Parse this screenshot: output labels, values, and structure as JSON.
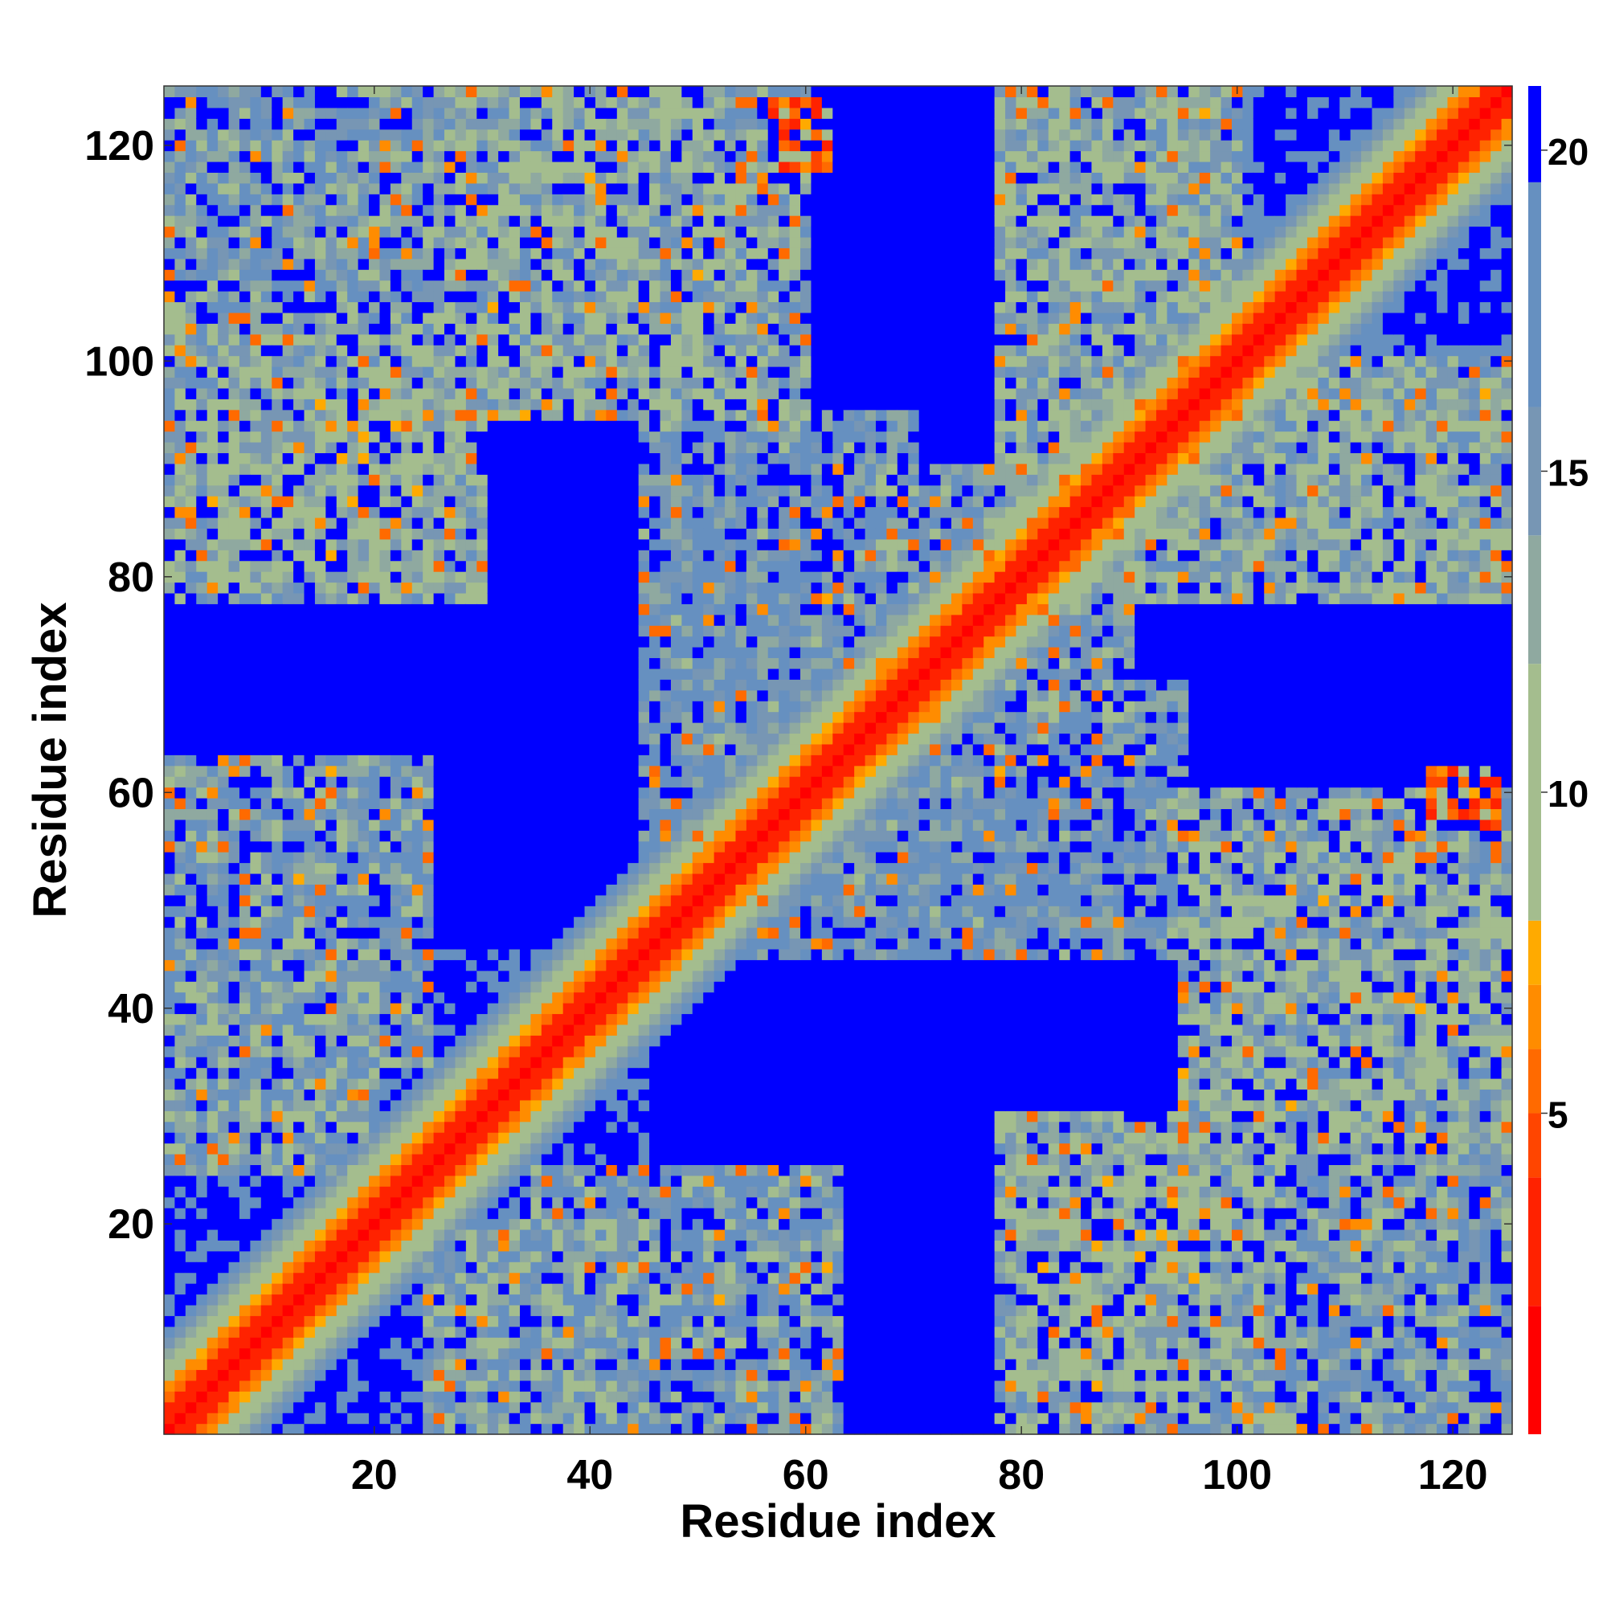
{
  "chart_data": {
    "type": "heatmap",
    "title": "",
    "xlabel": "Residue index",
    "ylabel": "Residue index",
    "n_residues": 125,
    "xlim": [
      0.5,
      125.5
    ],
    "ylim": [
      0.5,
      125.5
    ],
    "x_ticks": [
      20,
      40,
      60,
      80,
      100,
      120
    ],
    "y_ticks": [
      20,
      40,
      60,
      80,
      100,
      120
    ],
    "colorbar": {
      "range": [
        0,
        21
      ],
      "ticks": [
        5,
        10,
        15,
        20
      ],
      "levels": [
        {
          "max": 2,
          "color": "#ff0000"
        },
        {
          "max": 4,
          "color": "#ff2200"
        },
        {
          "max": 5,
          "color": "#ff4500"
        },
        {
          "max": 6,
          "color": "#ff6a00"
        },
        {
          "max": 7,
          "color": "#ff8c00"
        },
        {
          "max": 8,
          "color": "#ffaa00"
        },
        {
          "max": 12,
          "color": "#a4bd8e"
        },
        {
          "max": 14,
          "color": "#8fa9a0"
        },
        {
          "max": 16,
          "color": "#7796b4"
        },
        {
          "max": 19.5,
          "color": "#6690c0"
        },
        {
          "max": 21,
          "color": "#0000ff"
        }
      ]
    },
    "description_of_values": "Residue-residue distance map; symmetric",
    "distance_cutoff": 20,
    "domains": [
      {
        "a": [
          1,
          45
        ],
        "b": [
          1,
          45
        ],
        "label": ""
      },
      {
        "a": [
          46,
          80
        ],
        "b": [
          46,
          80
        ],
        "label": ""
      },
      {
        "a": [
          81,
          125
        ],
        "b": [
          81,
          125
        ],
        "label": ""
      }
    ],
    "contact_regions": [
      {
        "a": [
          1,
          30
        ],
        "b": [
          78,
          104
        ],
        "level": 12
      },
      {
        "a": [
          30,
          60
        ],
        "b": [
          95,
          125
        ],
        "level": 13
      },
      {
        "a": [
          1,
          20
        ],
        "b": [
          100,
          125
        ],
        "level": 15
      },
      {
        "a": [
          1,
          25
        ],
        "b": [
          35,
          63
        ],
        "level": 14
      },
      {
        "a": [
          57,
          62
        ],
        "b": [
          119,
          124
        ],
        "level": 6
      },
      {
        "a": [
          80,
          95
        ],
        "b": [
          5,
          25
        ],
        "level": 11
      },
      {
        "a": [
          95,
          125
        ],
        "b": [
          25,
          55
        ],
        "level": 12
      },
      {
        "a": [
          85,
          125
        ],
        "b": [
          78,
          100
        ],
        "level": 12
      },
      {
        "a": [
          100,
          125
        ],
        "b": [
          1,
          30
        ],
        "level": 14
      },
      {
        "a": [
          118,
          123
        ],
        "b": [
          57,
          62
        ],
        "level": 6
      },
      {
        "a": [
          45,
          70
        ],
        "b": [
          55,
          95
        ],
        "level": 15
      },
      {
        "a": [
          25,
          45
        ],
        "b": [
          1,
          20
        ],
        "level": 13
      },
      {
        "a": [
          80,
          90
        ],
        "b": [
          65,
          80
        ],
        "level": 14
      }
    ]
  }
}
